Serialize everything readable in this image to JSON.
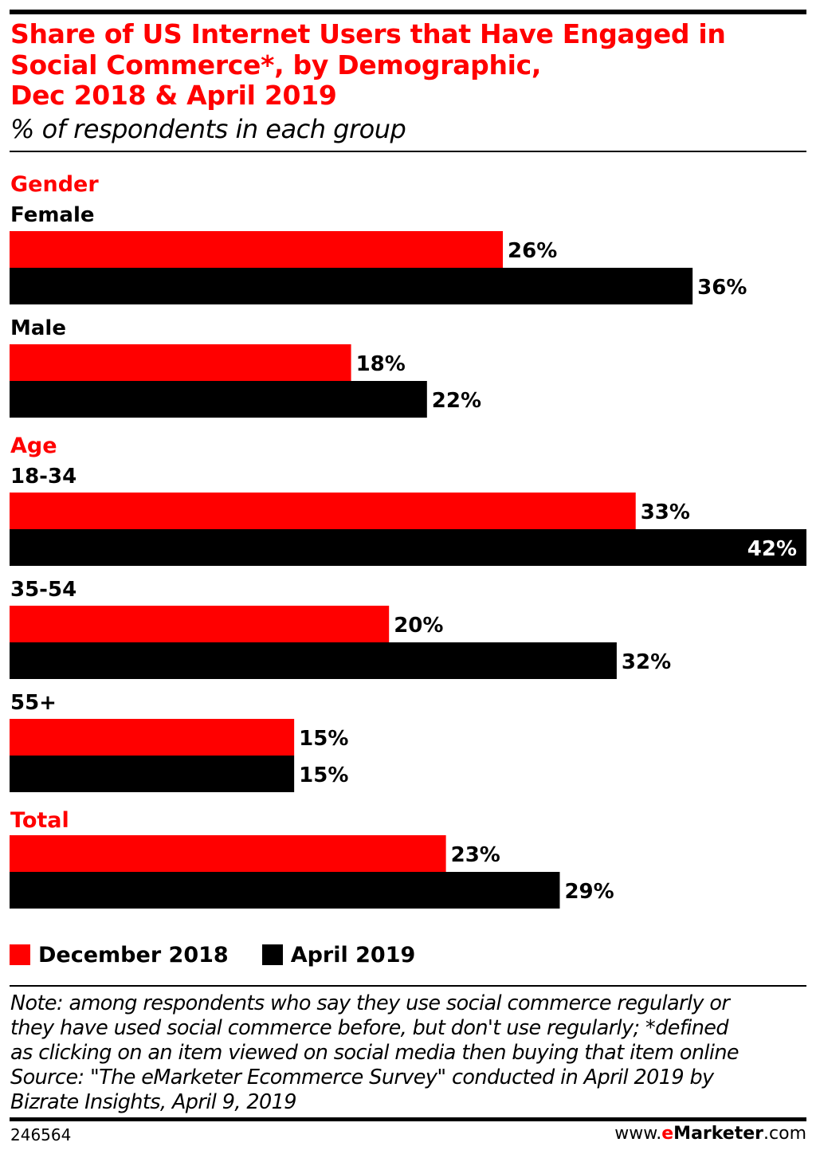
{
  "chart_data": {
    "type": "bar",
    "orientation": "horizontal",
    "title": "Share of US Internet Users that Have Engaged in Social Commerce*, by Demographic, Dec 2018 & April 2019",
    "title_lines": [
      "Share of US Internet Users that Have Engaged in",
      "Social Commerce*, by Demographic,",
      "Dec 2018 & April 2019"
    ],
    "subtitle": "% of respondents in each group",
    "xlim": [
      0,
      42
    ],
    "groups": [
      {
        "name": "Gender",
        "categories": [
          {
            "label": "Female",
            "values": [
              26,
              36
            ]
          },
          {
            "label": "Male",
            "values": [
              18,
              22
            ]
          }
        ]
      },
      {
        "name": "Age",
        "categories": [
          {
            "label": "18-34",
            "values": [
              33,
              42
            ]
          },
          {
            "label": "35-54",
            "values": [
              20,
              32
            ]
          },
          {
            "label": "55+",
            "values": [
              15,
              15
            ]
          }
        ]
      },
      {
        "name": "Total",
        "categories": [
          {
            "label": "",
            "values": [
              23,
              29
            ]
          }
        ]
      }
    ],
    "series": [
      {
        "name": "December 2018",
        "color": "#ff0000"
      },
      {
        "name": "April 2019",
        "color": "#000000"
      }
    ],
    "value_suffix": "%",
    "legend_position": "bottom-left"
  },
  "note_lines": [
    "Note: among respondents who say they use social commerce regularly or",
    "they have used social commerce before, but don't use regularly; *defined",
    "as clicking on an item viewed on social media then buying that item online",
    "Source: \"The eMarketer Ecommerce Survey\" conducted in April 2019 by",
    "Bizrate Insights, April 9, 2019"
  ],
  "footer": {
    "chart_id": "246564",
    "brand_prefix": "www.",
    "brand_e": "e",
    "brand_name": "Marketer",
    "brand_suffix": ".com"
  }
}
